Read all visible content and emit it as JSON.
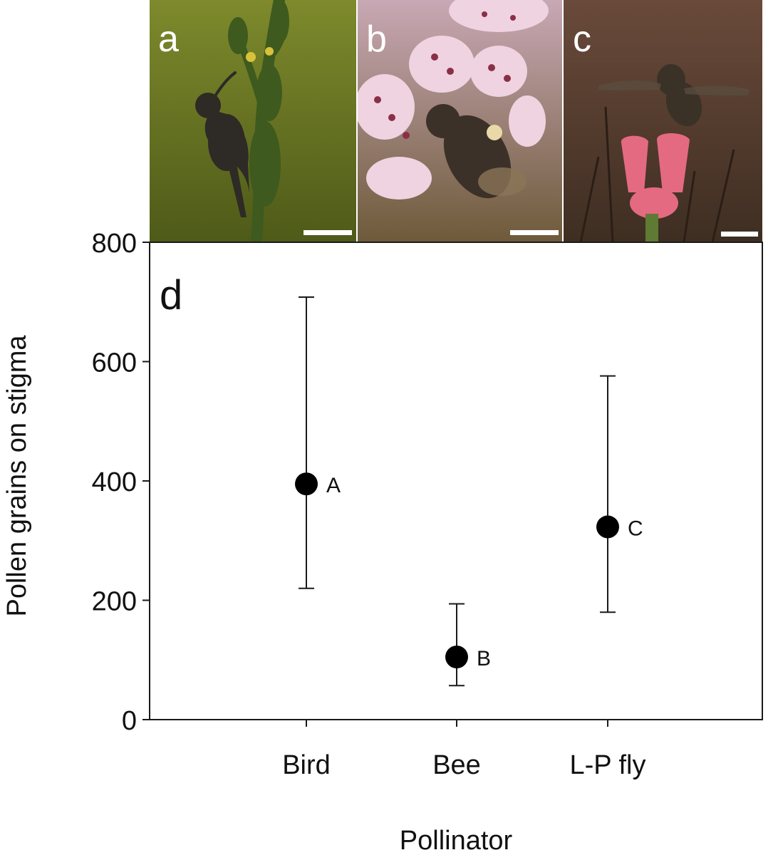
{
  "panels": [
    {
      "letter": "a",
      "subject": "bird-on-plant",
      "colors": {
        "bg_top": "#7e8a2c",
        "bg_bottom": "#4e5a18",
        "plant": "#3e5a1e",
        "animal": "#2e2a26"
      }
    },
    {
      "letter": "b",
      "subject": "bee-on-flowers",
      "colors": {
        "bg_top": "#c8a8b4",
        "bg_bottom": "#6e5a3a",
        "flower": "#efd3e0",
        "animal": "#3c3128"
      }
    },
    {
      "letter": "c",
      "subject": "fly-over-flower",
      "colors": {
        "bg_top": "#6a4a3a",
        "bg_bottom": "#3e2e22",
        "flower": "#e46a82",
        "animal": "#3a3226"
      }
    }
  ],
  "chart_data": {
    "type": "scatter",
    "panel_label": "d",
    "title": "",
    "xlabel": "Pollinator",
    "ylabel": "Pollen grains on stigma",
    "ylim": [
      0,
      800
    ],
    "yticks": [
      0,
      200,
      400,
      600,
      800
    ],
    "categories": [
      "Bird",
      "Bee",
      "L-P fly"
    ],
    "values": [
      395,
      105,
      323
    ],
    "error_low": [
      220,
      57,
      180
    ],
    "error_high": [
      708,
      194,
      576
    ],
    "point_labels": [
      "A",
      "B",
      "C"
    ],
    "marker_color": "#000000",
    "grid": false
  }
}
